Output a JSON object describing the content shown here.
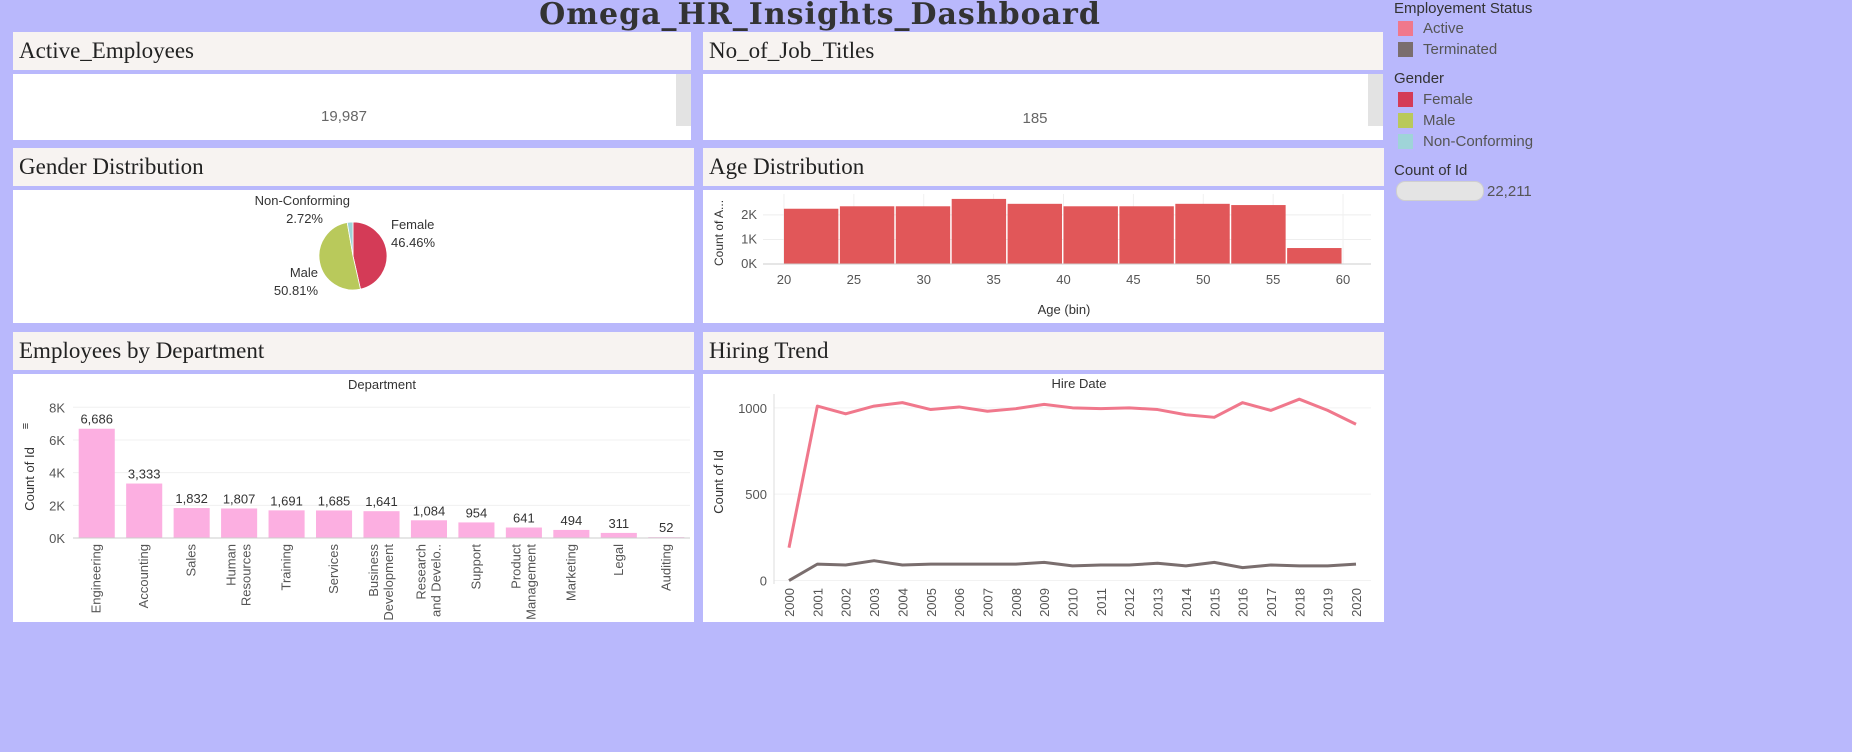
{
  "dashboard": {
    "title": "Omega_HR_Insights_Dashboard"
  },
  "kpis": [
    {
      "title": "Active_Employees",
      "value": "19,987"
    },
    {
      "title": "No_of_Job_Titles",
      "value": "185"
    }
  ],
  "panels": {
    "gender": "Gender Distribution",
    "age": "Age Distribution",
    "dept": "Employees by Department",
    "hiring": "Hiring Trend"
  },
  "legend": {
    "status_title": "Employement Status",
    "status_items": [
      {
        "label": "Active",
        "color": "#f0788c"
      },
      {
        "label": "Terminated",
        "color": "#7a6e6e"
      }
    ],
    "gender_title": "Gender",
    "gender_items": [
      {
        "label": "Female",
        "color": "#d43b57"
      },
      {
        "label": "Male",
        "color": "#b9c95b"
      },
      {
        "label": "Non-Conforming",
        "color": "#9fd4d8"
      }
    ],
    "count_title": "Count of Id",
    "count_value": "22,211"
  },
  "chart_data": [
    {
      "id": "gender",
      "type": "pie",
      "labels": [
        "Female",
        "Male",
        "Non-Conforming"
      ],
      "values": [
        46.46,
        50.81,
        2.72
      ],
      "value_labels": [
        "46.46%",
        "50.81%",
        "2.72%"
      ],
      "colors": [
        "#d43b57",
        "#b9c95b",
        "#9fd4d8"
      ]
    },
    {
      "id": "age",
      "type": "bar",
      "xlabel": "Age (bin)",
      "ylabel": "Count of A...",
      "x_ticks": [
        "20",
        "25",
        "30",
        "35",
        "40",
        "45",
        "50",
        "55",
        "60"
      ],
      "y_ticks": [
        "0K",
        "1K",
        "2K"
      ],
      "bins": [
        20,
        24,
        28,
        32,
        36,
        40,
        44,
        48,
        52,
        56
      ],
      "bin_width": 4,
      "values": [
        2250,
        2350,
        2350,
        2650,
        2450,
        2350,
        2350,
        2450,
        2400,
        650
      ],
      "xlim": [
        18.5,
        62
      ],
      "ylim": [
        0,
        2850
      ],
      "color": "#e15759"
    },
    {
      "id": "dept",
      "type": "bar",
      "title": "Department",
      "ylabel": "Count of Id",
      "categories": [
        "Engineering",
        "Accounting",
        "Sales",
        "Human Resources",
        "Training",
        "Services",
        "Business Development",
        "Research and Develo..",
        "Support",
        "Product Management",
        "Marketing",
        "Legal",
        "Auditing"
      ],
      "values": [
        6686,
        3333,
        1832,
        1807,
        1691,
        1685,
        1641,
        1084,
        954,
        641,
        494,
        311,
        52
      ],
      "value_labels": [
        "6,686",
        "3,333",
        "1,832",
        "1,807",
        "1,691",
        "1,685",
        "1,641",
        "1,084",
        "954",
        "641",
        "494",
        "311",
        "52"
      ],
      "y_ticks": [
        "0K",
        "2K",
        "4K",
        "6K",
        "8K"
      ],
      "ylim": [
        0,
        8200
      ],
      "color": "#fcafe1"
    },
    {
      "id": "hiring",
      "type": "line",
      "title": "Hire Date",
      "ylabel": "Count of Id",
      "x": [
        "2000",
        "2001",
        "2002",
        "2003",
        "2004",
        "2005",
        "2006",
        "2007",
        "2008",
        "2009",
        "2010",
        "2011",
        "2012",
        "2013",
        "2014",
        "2015",
        "2016",
        "2017",
        "2018",
        "2019",
        "2020"
      ],
      "y_ticks": [
        "0",
        "500",
        "1000"
      ],
      "ylim": [
        -20,
        1080
      ],
      "series": [
        {
          "name": "Active",
          "color": "#f0788c",
          "values": [
            190,
            1010,
            965,
            1010,
            1030,
            990,
            1005,
            980,
            995,
            1020,
            1000,
            995,
            1000,
            990,
            960,
            945,
            1030,
            985,
            1050,
            985,
            905
          ]
        },
        {
          "name": "Terminated",
          "color": "#7a6e6e",
          "values": [
            0,
            95,
            90,
            115,
            90,
            95,
            95,
            95,
            95,
            105,
            85,
            90,
            90,
            100,
            85,
            105,
            75,
            90,
            85,
            85,
            95
          ]
        }
      ]
    }
  ]
}
